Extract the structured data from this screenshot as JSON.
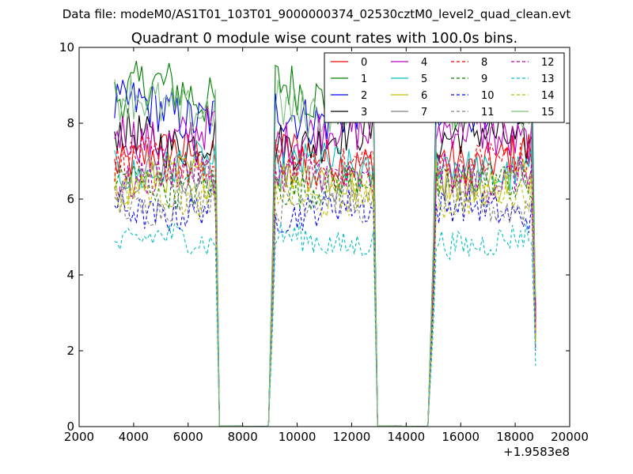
{
  "chart_data": {
    "type": "line",
    "suptitle": "Data file: modeM0/AS1T01_103T01_9000000374_02530cztM0_level2_quad_clean.evt",
    "title": "Quadrant 0 module wise count rates with 100.0s bins.",
    "xlabel": "",
    "ylabel": "",
    "x_offset_label": "+1.9583e8",
    "xlim": [
      2000,
      20000
    ],
    "ylim": [
      0,
      10
    ],
    "xticks": [
      2000,
      4000,
      6000,
      8000,
      10000,
      12000,
      14000,
      16000,
      18000,
      20000
    ],
    "yticks": [
      0,
      2,
      4,
      6,
      8,
      10
    ],
    "grid": false,
    "legend_position": "top-right",
    "legend_columns": 4,
    "segments": [
      {
        "start": 3300,
        "end": 7000,
        "drop_end": 7150
      },
      {
        "start": 9200,
        "end": 12800,
        "drop_start": 8950,
        "drop_end": 12950
      },
      {
        "start": 15100,
        "end": 18650,
        "drop_start": 14800,
        "drop_end": 18750
      }
    ],
    "series": [
      {
        "name": "0",
        "color": "#ff0000",
        "dash": "solid",
        "level": 7.1,
        "final": 2.6
      },
      {
        "name": "1",
        "color": "#008000",
        "dash": "solid",
        "level": 8.8,
        "final": 3.0
      },
      {
        "name": "2",
        "color": "#0000ff",
        "dash": "solid",
        "level": 8.3,
        "final": 3.1
      },
      {
        "name": "3",
        "color": "#000000",
        "dash": "solid",
        "level": 7.6,
        "final": 2.8
      },
      {
        "name": "4",
        "color": "#bf00bf",
        "dash": "solid",
        "level": 7.7,
        "final": 2.9
      },
      {
        "name": "5",
        "color": "#00bfbf",
        "dash": "solid",
        "level": 6.8,
        "final": 2.4
      },
      {
        "name": "6",
        "color": "#bfbf00",
        "dash": "solid",
        "level": 6.5,
        "final": 2.3
      },
      {
        "name": "7",
        "color": "#808080",
        "dash": "solid",
        "level": 6.6,
        "final": 2.5
      },
      {
        "name": "8",
        "color": "#ff0000",
        "dash": "dashed",
        "level": 6.9,
        "final": 2.6
      },
      {
        "name": "9",
        "color": "#008000",
        "dash": "dashed",
        "level": 6.4,
        "final": 2.2
      },
      {
        "name": "10",
        "color": "#0000ff",
        "dash": "dashed",
        "level": 5.7,
        "final": 2.0
      },
      {
        "name": "11",
        "color": "#808080",
        "dash": "dashed",
        "level": 5.9,
        "final": 2.1
      },
      {
        "name": "12",
        "color": "#bf00bf",
        "dash": "dashed",
        "level": 6.6,
        "final": 2.4
      },
      {
        "name": "13",
        "color": "#00bfbf",
        "dash": "dashed",
        "level": 4.9,
        "final": 1.6
      },
      {
        "name": "14",
        "color": "#bfbf00",
        "dash": "dashed",
        "level": 6.1,
        "final": 2.2
      },
      {
        "name": "15",
        "color": "#7fbf7f",
        "dash": "solid",
        "level": 8.5,
        "final": 3.4
      }
    ]
  }
}
